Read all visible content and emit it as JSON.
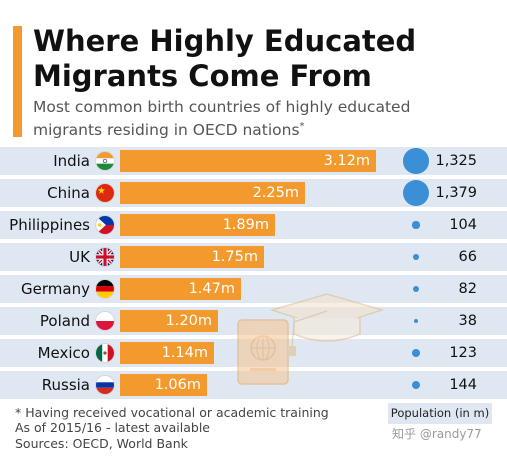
{
  "header": {
    "title": "Where Highly Educated Migrants Come From",
    "subtitle": "Most common birth countries of highly educated migrants residing in OECD nations",
    "subtitle_mark": "*"
  },
  "chart_data": {
    "type": "bar",
    "categories": [
      "India",
      "China",
      "Philippines",
      "UK",
      "Germany",
      "Poland",
      "Mexico",
      "Russia"
    ],
    "series": [
      {
        "values": [
          3.12,
          2.25,
          1.89,
          1.75,
          1.47,
          1.2,
          1.14,
          1.06
        ],
        "value_labels": [
          "3.12m",
          "2.25m",
          "1.89m",
          "1.75m",
          "1.47m",
          "1.20m",
          "1.14m",
          "1.06m"
        ]
      }
    ],
    "population": {
      "title": "Population (in m)",
      "values": [
        1325,
        1379,
        104,
        66,
        82,
        38,
        123,
        144
      ],
      "labels": [
        "1,325",
        "1,379",
        "104",
        "66",
        "82",
        "38",
        "123",
        "144"
      ]
    },
    "flags": [
      "india-flag-icon",
      "china-flag-icon",
      "philippines-flag-icon",
      "uk-flag-icon",
      "germany-flag-icon",
      "poland-flag-icon",
      "mexico-flag-icon",
      "russia-flag-icon"
    ],
    "xlim": [
      0,
      3.12
    ],
    "bar_color": "#f39a2e",
    "bubble_color": "#3b8fd6",
    "row_band_color": "#dfe8f2"
  },
  "footer": {
    "note1": "* Having received vocational or academic training",
    "note2": "As of 2015/16 - latest available",
    "sources": "Sources: OECD, World Bank"
  },
  "watermark": "知乎 @randy77",
  "illustration": "graduation-cap-and-passport-icon"
}
